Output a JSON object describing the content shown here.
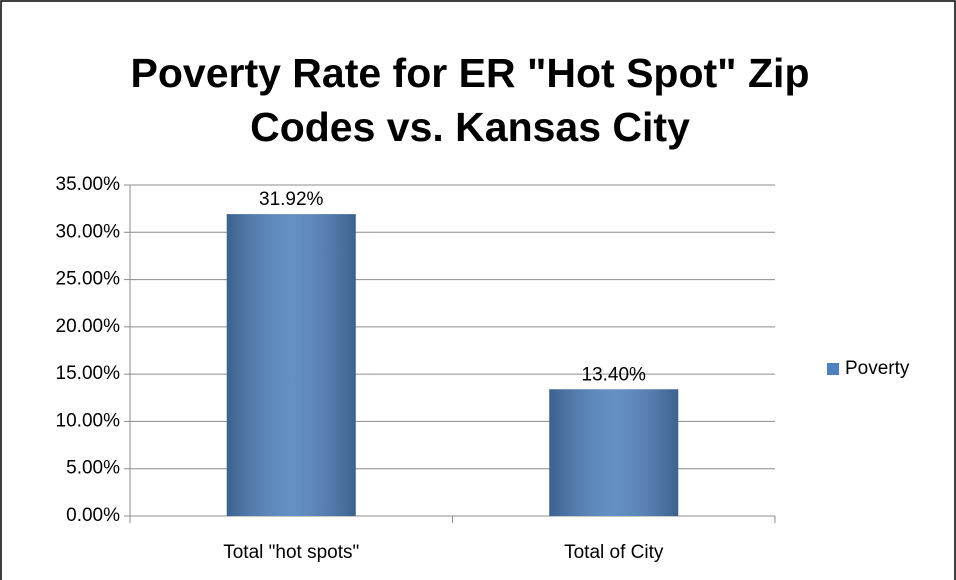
{
  "chart_data": {
    "type": "bar",
    "title": [
      "Poverty Rate for ER \"Hot Spot\" Zip",
      "Codes vs. Kansas City"
    ],
    "categories": [
      "Total \"hot spots\"",
      "Total of City"
    ],
    "series": [
      {
        "name": "Poverty",
        "color": "#4f81bd",
        "values": [
          31.92,
          13.4
        ],
        "value_labels": [
          "31.92%",
          "13.40%"
        ]
      }
    ],
    "ylim": [
      0,
      35
    ],
    "yticks": [
      {
        "value": 0,
        "label": "0.00%"
      },
      {
        "value": 5,
        "label": "5.00%"
      },
      {
        "value": 10,
        "label": "10.00%"
      },
      {
        "value": 15,
        "label": "15.00%"
      },
      {
        "value": 20,
        "label": "20.00%"
      },
      {
        "value": 25,
        "label": "25.00%"
      },
      {
        "value": 30,
        "label": "30.00%"
      },
      {
        "value": 35,
        "label": "35.00%"
      }
    ],
    "grid": true,
    "legend": "right"
  }
}
